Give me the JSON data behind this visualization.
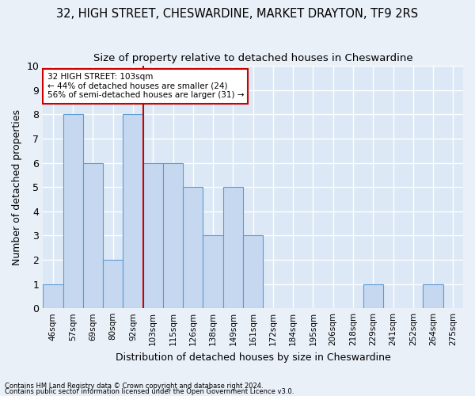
{
  "title_line1": "32, HIGH STREET, CHESWARDINE, MARKET DRAYTON, TF9 2RS",
  "title_line2": "Size of property relative to detached houses in Cheswardine",
  "xlabel": "Distribution of detached houses by size in Cheswardine",
  "ylabel": "Number of detached properties",
  "footer_line1": "Contains HM Land Registry data © Crown copyright and database right 2024.",
  "footer_line2": "Contains public sector information licensed under the Open Government Licence v3.0.",
  "bins": [
    "46sqm",
    "57sqm",
    "69sqm",
    "80sqm",
    "92sqm",
    "103sqm",
    "115sqm",
    "126sqm",
    "138sqm",
    "149sqm",
    "161sqm",
    "172sqm",
    "184sqm",
    "195sqm",
    "206sqm",
    "218sqm",
    "229sqm",
    "241sqm",
    "252sqm",
    "264sqm",
    "275sqm"
  ],
  "values": [
    1,
    8,
    6,
    2,
    8,
    6,
    6,
    5,
    3,
    5,
    3,
    0,
    0,
    0,
    0,
    0,
    1,
    0,
    0,
    1,
    0
  ],
  "subject_index": 5,
  "bar_color": "#c5d8f0",
  "bar_edge_color": "#5b9bd5",
  "redline_color": "#cc0000",
  "annotation_text": "32 HIGH STREET: 103sqm\n← 44% of detached houses are smaller (24)\n56% of semi-detached houses are larger (31) →",
  "annotation_box_color": "#ffffff",
  "annotation_border_color": "#cc0000",
  "ylim": [
    0,
    10
  ],
  "yticks": [
    0,
    1,
    2,
    3,
    4,
    5,
    6,
    7,
    8,
    9,
    10
  ],
  "background_color": "#eaf0f8",
  "plot_bg_color": "#dce8f5",
  "grid_color": "#ffffff",
  "title_fontsize": 10.5,
  "subtitle_fontsize": 9.5
}
